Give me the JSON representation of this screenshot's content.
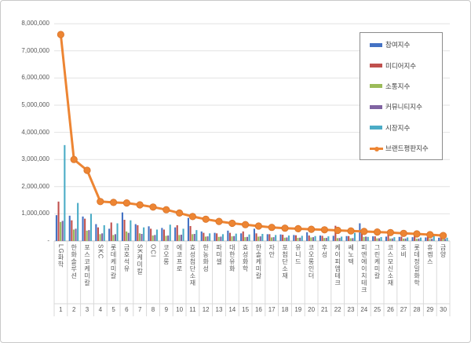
{
  "chart_data": {
    "type": "combo-bar-line",
    "title": "",
    "categories": [
      "LG화학",
      "한화솔루션",
      "포스코케미칼",
      "SKC",
      "롯데케미칼",
      "금호석유",
      "SK케미칼",
      "OCI",
      "코오롱",
      "에코프로",
      "효성첨단소재",
      "한농화성",
      "파미셀",
      "대한유화",
      "효성화학",
      "한솔케미칼",
      "자안",
      "포첨단소재",
      "유니드",
      "코오롱인더",
      "후성",
      "케이피엠테크",
      "쎄노텍",
      "피엔에이치테크",
      "그린케미칼",
      "코스모신소재",
      "조비",
      "롯데정밀화학",
      "휴켐스",
      "금양"
    ],
    "x_tick_numbers": [
      "1",
      "2",
      "3",
      "4",
      "5",
      "6",
      "7",
      "8",
      "9",
      "10",
      "11",
      "12",
      "13",
      "14",
      "15",
      "16",
      "17",
      "18",
      "19",
      "20",
      "21",
      "22",
      "23",
      "24",
      "25",
      "26",
      "27",
      "28",
      "29",
      "30"
    ],
    "y_axis": {
      "min": 0,
      "max": 8000000,
      "step": 1000000,
      "tick_labels": [
        "8,000,000",
        "7,000,000",
        "6,000,000",
        "5,000,000",
        "4,000,000",
        "3,000,000",
        "2,000,000",
        "1,000,000",
        "-"
      ]
    },
    "grid": "horizontal",
    "legend_position": "overlay-top-right",
    "series": [
      {
        "name": "참여지수",
        "type": "bar",
        "color": "#4472C4",
        "values": [
          950000,
          930000,
          900000,
          620000,
          450000,
          1050000,
          620000,
          540000,
          480000,
          500000,
          850000,
          350000,
          300000,
          380000,
          280000,
          450000,
          250000,
          240000,
          220000,
          320000,
          200000,
          190000,
          180000,
          650000,
          170000,
          160000,
          150000,
          140000,
          130000,
          120000
        ]
      },
      {
        "name": "미디어지수",
        "type": "bar",
        "color": "#C0504D",
        "values": [
          1450000,
          760000,
          820000,
          500000,
          680000,
          780000,
          580000,
          450000,
          420000,
          580000,
          550000,
          300000,
          280000,
          300000,
          350000,
          280000,
          250000,
          230000,
          210000,
          200000,
          190000,
          560000,
          180000,
          300000,
          170000,
          350000,
          160000,
          200000,
          150000,
          280000
        ]
      },
      {
        "name": "소통지수",
        "type": "bar",
        "color": "#9BBB59",
        "values": [
          700000,
          420000,
          380000,
          250000,
          220000,
          350000,
          280000,
          200000,
          190000,
          220000,
          250000,
          160000,
          150000,
          170000,
          140000,
          160000,
          130000,
          120000,
          115000,
          130000,
          110000,
          105000,
          100000,
          150000,
          95000,
          90000,
          85000,
          80000,
          75000,
          70000
        ]
      },
      {
        "name": "커뮤니티지수",
        "type": "bar",
        "color": "#8064A2",
        "values": [
          740000,
          450000,
          400000,
          280000,
          250000,
          300000,
          260000,
          220000,
          200000,
          230000,
          260000,
          170000,
          160000,
          180000,
          150000,
          170000,
          140000,
          130000,
          120000,
          140000,
          115000,
          110000,
          105000,
          160000,
          100000,
          95000,
          90000,
          85000,
          80000,
          75000
        ]
      },
      {
        "name": "시장지수",
        "type": "bar",
        "color": "#4BACC6",
        "values": [
          3530000,
          1400000,
          1000000,
          580000,
          650000,
          760000,
          500000,
          420000,
          600000,
          450000,
          400000,
          280000,
          250000,
          270000,
          240000,
          260000,
          220000,
          200000,
          190000,
          180000,
          170000,
          160000,
          300000,
          150000,
          145000,
          140000,
          130000,
          125000,
          260000,
          120000
        ]
      },
      {
        "name": "브랜드평판지수",
        "type": "line",
        "color": "#ED8533",
        "marker_edge_color": "#D9742A",
        "values": [
          7600000,
          3000000,
          2600000,
          1450000,
          1420000,
          1400000,
          1330000,
          1250000,
          1150000,
          1030000,
          900000,
          800000,
          720000,
          650000,
          600000,
          550000,
          500000,
          470000,
          450000,
          430000,
          410000,
          390000,
          370000,
          350000,
          330000,
          310000,
          280000,
          260000,
          230000,
          200000
        ]
      }
    ],
    "colors": {
      "gridline": "#e2e2e2",
      "axis_line": "#bfbfbf",
      "table_line": "#d9d9d9",
      "tick_text": "#595959"
    }
  }
}
